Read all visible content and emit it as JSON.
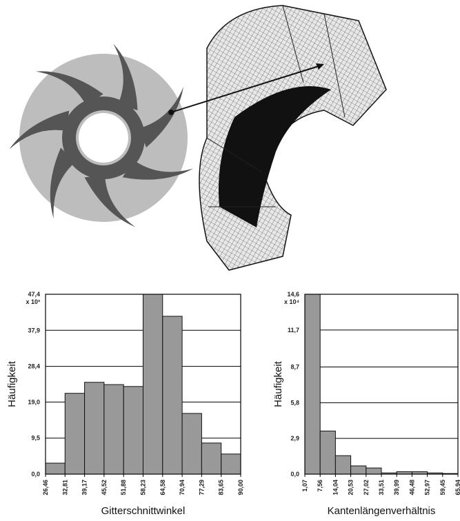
{
  "chart_data": [
    {
      "type": "histogram",
      "x_label": "Gitterschnittwinkel",
      "y_label": "Häufigkeit",
      "y_multiplier": "x 10³",
      "bins": [
        26.46,
        32.81,
        39.17,
        45.52,
        51.88,
        58.23,
        64.58,
        70.94,
        77.29,
        83.65,
        90.0
      ],
      "values": [
        2.9,
        21.3,
        24.2,
        23.6,
        23.1,
        47.4,
        41.6,
        16.0,
        8.2,
        5.3
      ],
      "color": "#999999",
      "grid": true,
      "xlim": [
        26.46,
        90.0
      ],
      "xticks": [
        {
          "value": 26.46,
          "label": "26,46"
        },
        {
          "value": 32.81,
          "label": "32,81"
        },
        {
          "value": 39.17,
          "label": "39,17"
        },
        {
          "value": 45.52,
          "label": "45,52"
        },
        {
          "value": 51.88,
          "label": "51,88"
        },
        {
          "value": 58.23,
          "label": "58,23"
        },
        {
          "value": 64.58,
          "label": "64,58"
        },
        {
          "value": 70.94,
          "label": "70,94"
        },
        {
          "value": 77.29,
          "label": "77,29"
        },
        {
          "value": 83.65,
          "label": "83,65"
        },
        {
          "value": 90.0,
          "label": "90,00"
        }
      ],
      "ylim": [
        0,
        47.4
      ],
      "yticks": [
        {
          "value": 0,
          "label": "0,0"
        },
        {
          "value": 9.5,
          "label": "9,5"
        },
        {
          "value": 19.0,
          "label": "19,0"
        },
        {
          "value": 28.4,
          "label": "28,4"
        },
        {
          "value": 37.9,
          "label": "37,9"
        },
        {
          "value": 47.4,
          "label": "47,4"
        }
      ]
    },
    {
      "type": "histogram",
      "x_label": "Kantenlängenverhältnis",
      "y_label": "Häufigkeit",
      "y_multiplier": "x 10⁴",
      "bins": [
        1.07,
        7.56,
        14.04,
        20.53,
        27.02,
        33.51,
        39.99,
        46.48,
        52.97,
        59.45,
        65.94
      ],
      "values": [
        14.6,
        3.5,
        1.5,
        0.67,
        0.5,
        0.1,
        0.2,
        0.2,
        0.1,
        0.05
      ],
      "color": "#999999",
      "grid": true,
      "xlim": [
        1.07,
        65.94
      ],
      "xticks": [
        {
          "value": 1.07,
          "label": "1,07"
        },
        {
          "value": 7.56,
          "label": "7,56"
        },
        {
          "value": 14.04,
          "label": "14,04"
        },
        {
          "value": 20.53,
          "label": "20,53"
        },
        {
          "value": 27.02,
          "label": "27,02"
        },
        {
          "value": 33.51,
          "label": "33,51"
        },
        {
          "value": 39.99,
          "label": "39,99"
        },
        {
          "value": 46.48,
          "label": "46,48"
        },
        {
          "value": 52.97,
          "label": "52,97"
        },
        {
          "value": 59.45,
          "label": "59,45"
        },
        {
          "value": 65.94,
          "label": "65,94"
        }
      ],
      "ylim": [
        0,
        14.6
      ],
      "yticks": [
        {
          "value": 0,
          "label": "0,0"
        },
        {
          "value": 2.9,
          "label": "2,9"
        },
        {
          "value": 5.8,
          "label": "5,8"
        },
        {
          "value": 8.7,
          "label": "8,7"
        },
        {
          "value": 11.7,
          "label": "11,7"
        },
        {
          "value": 14.6,
          "label": "14,6"
        }
      ]
    }
  ]
}
